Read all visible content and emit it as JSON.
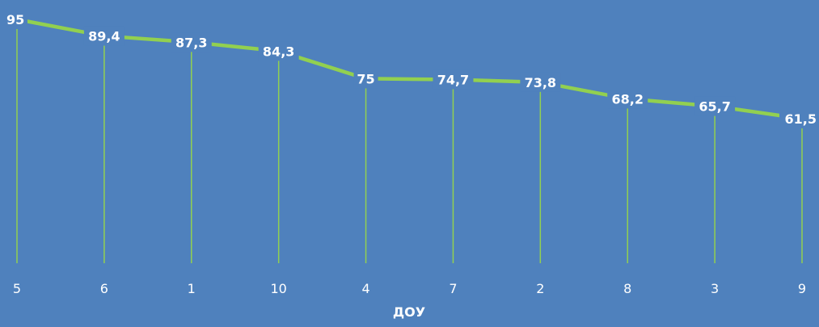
{
  "chart_data": {
    "type": "line",
    "categories": [
      "5",
      "6",
      "1",
      "10",
      "4",
      "7",
      "2",
      "8",
      "3",
      "9"
    ],
    "values": [
      95,
      89.4,
      87.3,
      84.3,
      75,
      74.7,
      73.8,
      68.2,
      65.7,
      61.5
    ],
    "data_labels": [
      "95",
      "89,4",
      "87,3",
      "84,3",
      "75",
      "74,7",
      "73,8",
      "68,2",
      "65,7",
      "61,5"
    ],
    "title": "",
    "xlabel": "ДОУ",
    "ylabel": "",
    "grid": false,
    "drop_lines": true,
    "colors": {
      "background": "#4f81bd",
      "line": "#92d050",
      "text": "#ffffff"
    }
  }
}
